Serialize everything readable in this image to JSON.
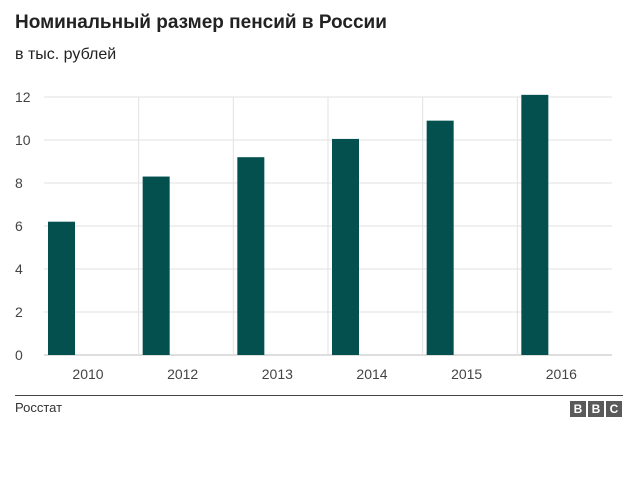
{
  "chart_data": {
    "type": "bar",
    "title": "Номинальный размер пенсий в России",
    "subtitle": "в тыс. рублей",
    "categories": [
      "2010",
      "2012",
      "2013",
      "2014",
      "2015",
      "2016"
    ],
    "values": [
      6.2,
      8.3,
      9.2,
      10.05,
      10.9,
      12.1
    ],
    "ylim": [
      0,
      12
    ],
    "yticks": [
      "0",
      "2",
      "4",
      "6",
      "8",
      "10",
      "12"
    ],
    "grid": true,
    "bar_color": "#03504f",
    "legend": "none"
  },
  "footer": {
    "source": "Росстат",
    "logo_letters": [
      "B",
      "B",
      "C"
    ]
  }
}
